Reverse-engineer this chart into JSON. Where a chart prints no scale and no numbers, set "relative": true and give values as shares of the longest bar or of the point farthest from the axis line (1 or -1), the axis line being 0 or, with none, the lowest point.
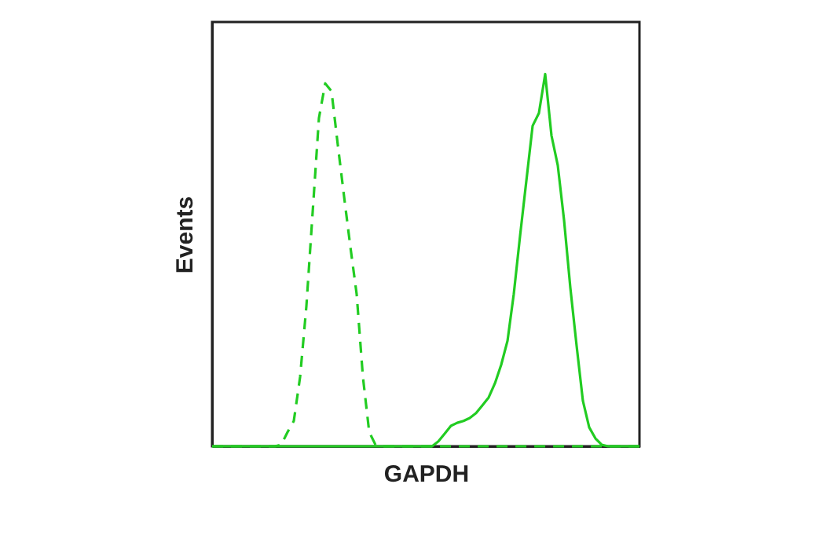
{
  "chart_data": {
    "type": "line",
    "relative": true,
    "xlabel": "GAPDH",
    "ylabel": "Events",
    "legend": false,
    "grid": false,
    "marker": "none",
    "categories": [
      null,
      null,
      null,
      null,
      null,
      null,
      null,
      null,
      null,
      null,
      null,
      null,
      null,
      null,
      null,
      null,
      null,
      null,
      null,
      null,
      null,
      null,
      null,
      null,
      null,
      null,
      null,
      null,
      null,
      null,
      null,
      null,
      null,
      null,
      null,
      null,
      null,
      null,
      null,
      null,
      null,
      null,
      null,
      null,
      null,
      null,
      null,
      null,
      null,
      null,
      null,
      null,
      null,
      null,
      null,
      null,
      null,
      null,
      null,
      null,
      null,
      null,
      null,
      null,
      null,
      null,
      null,
      null,
      null
    ],
    "series": [
      {
        "color": "#22cc22",
        "line_style": "dashed",
        "values": [
          0,
          0,
          0,
          0,
          0,
          0,
          0,
          0,
          0,
          0,
          0,
          0.004,
          0.038,
          0.068,
          0.186,
          0.376,
          0.629,
          0.882,
          0.975,
          0.954,
          0.81,
          0.671,
          0.536,
          0.409,
          0.186,
          0.038,
          0.004,
          0,
          0,
          0,
          0,
          0,
          0,
          0,
          0,
          0,
          0,
          0,
          0,
          0,
          0,
          0,
          0,
          0,
          0,
          0,
          0,
          0,
          0,
          0,
          0,
          0,
          0,
          0,
          0,
          0,
          0,
          0,
          0,
          0,
          0,
          0,
          0,
          0,
          0,
          0,
          0,
          0,
          0
        ]
      },
      {
        "color": "#22cc22",
        "line_style": "solid",
        "values": [
          0,
          0,
          0,
          0,
          0,
          0,
          0,
          0,
          0,
          0,
          0,
          0,
          0,
          0,
          0,
          0,
          0,
          0,
          0,
          0,
          0,
          0,
          0,
          0,
          0,
          0,
          0,
          0,
          0,
          0,
          0,
          0,
          0,
          0,
          0,
          0,
          0.013,
          0.034,
          0.055,
          0.063,
          0.068,
          0.076,
          0.089,
          0.11,
          0.131,
          0.169,
          0.219,
          0.283,
          0.409,
          0.565,
          0.713,
          0.861,
          0.895,
          1,
          0.835,
          0.755,
          0.608,
          0.426,
          0.27,
          0.122,
          0.051,
          0.021,
          0.004,
          0,
          0,
          0,
          0,
          0,
          0
        ]
      }
    ]
  }
}
